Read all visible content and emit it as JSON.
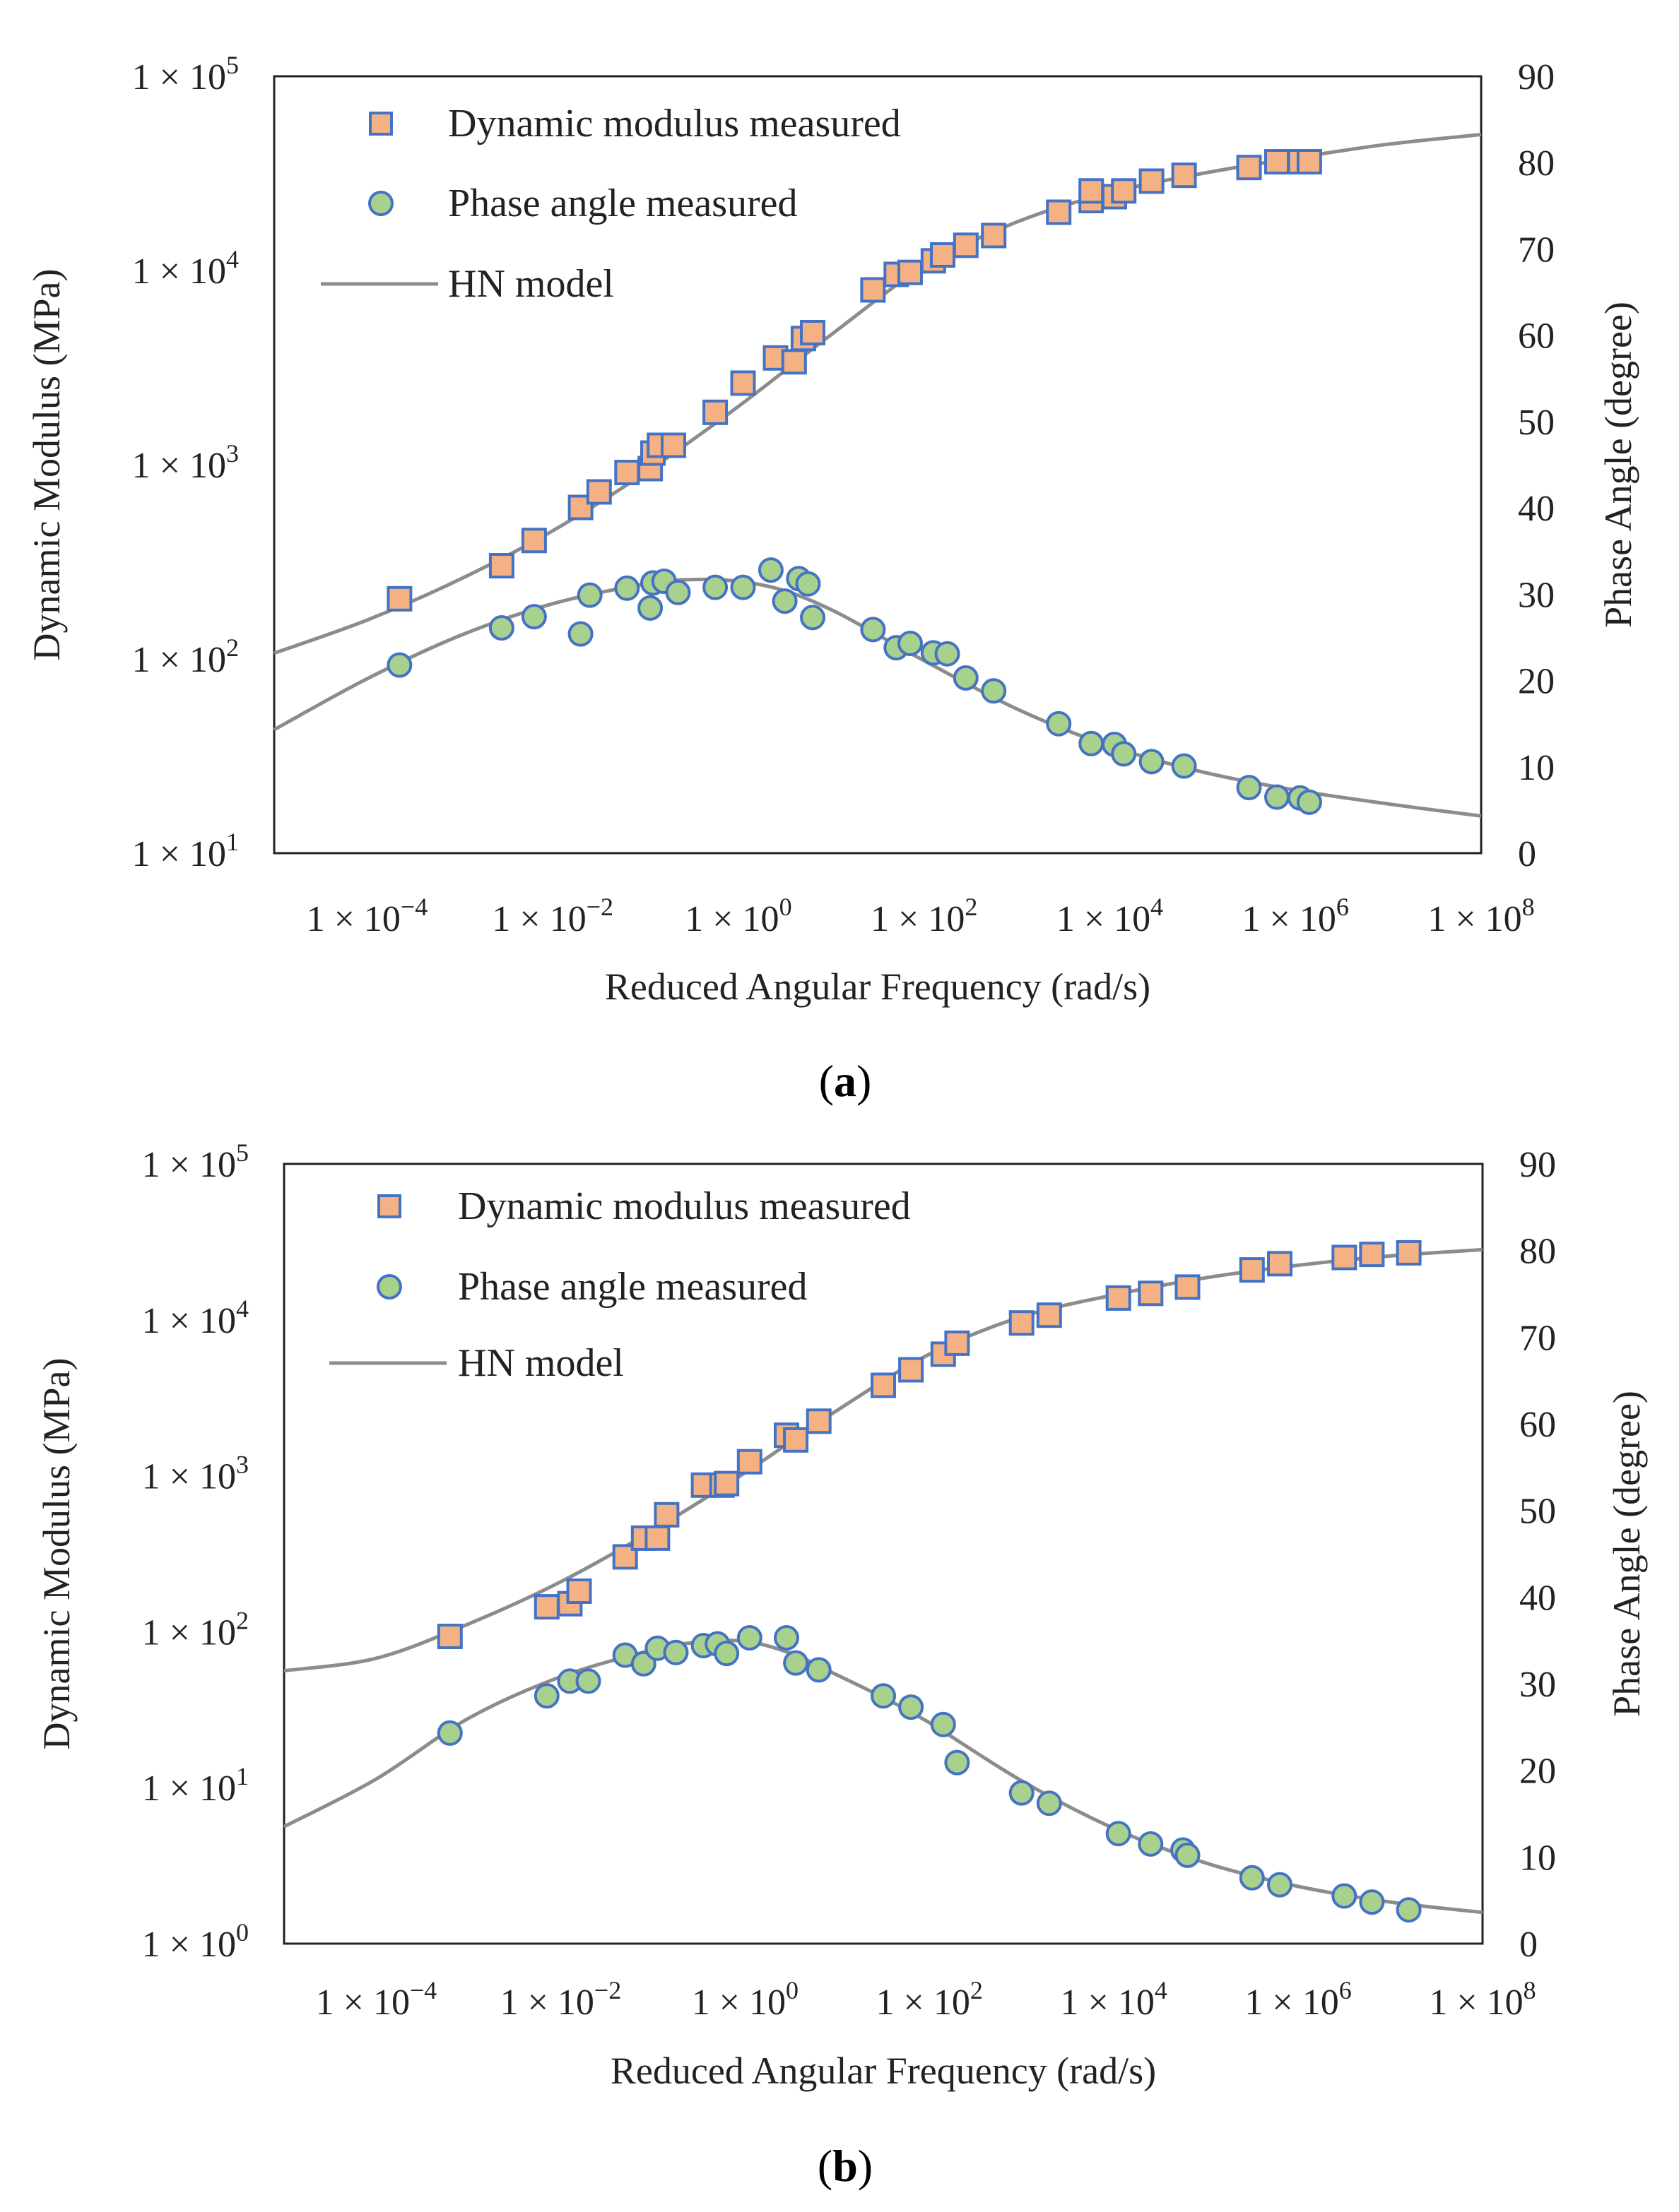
{
  "figure": {
    "caption_a": "a",
    "caption_b": "b"
  },
  "colors": {
    "square_fill": "#f4b183",
    "square_stroke": "#4472c4",
    "circle_fill": "#a9d18e",
    "circle_stroke": "#4472c4",
    "model_line": "#8c8c8c",
    "axis": "#222222"
  },
  "chart_data": [
    {
      "type": "scatter",
      "panel": "a",
      "xlabel": "Reduced Angular Frequency (rad/s)",
      "ylabel_left": "Dynamic Modulus (MPa)",
      "ylabel_right": "Phase Angle (degree)",
      "x_log_range": [
        -5,
        8
      ],
      "y_left_log_range": [
        1,
        5
      ],
      "y_right_range": [
        0,
        90
      ],
      "x_ticks": [
        {
          "base": "1 × 10",
          "exp": "−4",
          "log": -4
        },
        {
          "base": "1 × 10",
          "exp": "−2",
          "log": -2
        },
        {
          "base": "1 × 10",
          "exp": "0",
          "log": 0
        },
        {
          "base": "1 × 10",
          "exp": "2",
          "log": 2
        },
        {
          "base": "1 × 10",
          "exp": "4",
          "log": 4
        },
        {
          "base": "1 × 10",
          "exp": "6",
          "log": 6
        },
        {
          "base": "1 × 10",
          "exp": "8",
          "log": 8
        }
      ],
      "y_left_ticks": [
        {
          "base": "1 × 10",
          "exp": "1",
          "log": 1
        },
        {
          "base": "1 × 10",
          "exp": "2",
          "log": 2
        },
        {
          "base": "1 × 10",
          "exp": "3",
          "log": 3
        },
        {
          "base": "1 × 10",
          "exp": "4",
          "log": 4
        },
        {
          "base": "1 × 10",
          "exp": "5",
          "log": 5
        }
      ],
      "y_right_ticks": [
        "0",
        "10",
        "20",
        "30",
        "40",
        "50",
        "60",
        "70",
        "80",
        "90"
      ],
      "legend": [
        "Dynamic modulus measured",
        "Phase angle measured",
        "HN model"
      ],
      "modulus_points": [
        [
          -3.65,
          2.31
        ],
        [
          -2.55,
          2.48
        ],
        [
          -2.2,
          2.61
        ],
        [
          -1.7,
          2.78
        ],
        [
          -1.5,
          2.86
        ],
        [
          -1.2,
          2.96
        ],
        [
          -0.95,
          2.98
        ],
        [
          -0.92,
          3.06
        ],
        [
          -0.85,
          3.1
        ],
        [
          -0.7,
          3.1
        ],
        [
          -0.25,
          3.27
        ],
        [
          0.05,
          3.42
        ],
        [
          0.4,
          3.55
        ],
        [
          0.6,
          3.53
        ],
        [
          0.7,
          3.65
        ],
        [
          0.8,
          3.68
        ],
        [
          1.45,
          3.9
        ],
        [
          1.7,
          3.98
        ],
        [
          1.85,
          3.99
        ],
        [
          2.1,
          4.05
        ],
        [
          2.2,
          4.08
        ],
        [
          2.45,
          4.13
        ],
        [
          2.75,
          4.18
        ],
        [
          3.45,
          4.3
        ],
        [
          3.8,
          4.36
        ],
        [
          3.8,
          4.41
        ],
        [
          4.05,
          4.38
        ],
        [
          4.15,
          4.41
        ],
        [
          4.45,
          4.46
        ],
        [
          4.8,
          4.49
        ],
        [
          5.5,
          4.53
        ],
        [
          5.8,
          4.56
        ],
        [
          6.05,
          4.56
        ],
        [
          6.15,
          4.56
        ]
      ],
      "phase_points": [
        [
          -3.65,
          21.8
        ],
        [
          -2.55,
          26.1
        ],
        [
          -2.2,
          27.4
        ],
        [
          -1.7,
          25.4
        ],
        [
          -1.6,
          29.9
        ],
        [
          -1.2,
          30.7
        ],
        [
          -0.95,
          28.4
        ],
        [
          -0.92,
          31.3
        ],
        [
          -0.8,
          31.5
        ],
        [
          -0.65,
          30.2
        ],
        [
          -0.25,
          30.8
        ],
        [
          0.05,
          30.8
        ],
        [
          0.35,
          32.8
        ],
        [
          0.5,
          29.2
        ],
        [
          0.65,
          31.8
        ],
        [
          0.75,
          31.2
        ],
        [
          0.8,
          27.3
        ],
        [
          1.45,
          25.9
        ],
        [
          1.7,
          23.8
        ],
        [
          1.85,
          24.3
        ],
        [
          2.1,
          23.2
        ],
        [
          2.25,
          23.1
        ],
        [
          2.45,
          20.3
        ],
        [
          2.75,
          18.8
        ],
        [
          3.45,
          15.0
        ],
        [
          3.8,
          12.7
        ],
        [
          4.05,
          12.6
        ],
        [
          4.15,
          11.5
        ],
        [
          4.45,
          10.6
        ],
        [
          4.8,
          10.1
        ],
        [
          5.5,
          7.6
        ],
        [
          5.8,
          6.5
        ],
        [
          6.05,
          6.4
        ],
        [
          6.15,
          5.9
        ]
      ],
      "model_modulus_curve": [
        [
          -5,
          2.03
        ],
        [
          -4,
          2.2
        ],
        [
          -3,
          2.41
        ],
        [
          -2,
          2.66
        ],
        [
          -1,
          2.96
        ],
        [
          0,
          3.3
        ],
        [
          1,
          3.67
        ],
        [
          2,
          4.02
        ],
        [
          3,
          4.25
        ],
        [
          4,
          4.4
        ],
        [
          5,
          4.5
        ],
        [
          6,
          4.58
        ],
        [
          7,
          4.65
        ],
        [
          8,
          4.7
        ]
      ],
      "model_phase_curve": [
        [
          -5,
          14.3
        ],
        [
          -4,
          20.2
        ],
        [
          -3,
          25.2
        ],
        [
          -2,
          28.9
        ],
        [
          -1,
          31.2
        ],
        [
          -0.5,
          31.7
        ],
        [
          0,
          31.5
        ],
        [
          0.5,
          30.4
        ],
        [
          1,
          28.2
        ],
        [
          1.5,
          25.3
        ],
        [
          2,
          22.3
        ],
        [
          3,
          16.7
        ],
        [
          4,
          12.4
        ],
        [
          5,
          9.4
        ],
        [
          6,
          7.3
        ],
        [
          7,
          5.7
        ],
        [
          8,
          4.3
        ]
      ]
    },
    {
      "type": "scatter",
      "panel": "b",
      "xlabel": "Reduced Angular Frequency (rad/s)",
      "ylabel_left": "Dynamic Modulus (MPa)",
      "ylabel_right": "Phase Angle (degree)",
      "x_log_range": [
        -5,
        8
      ],
      "y_left_log_range": [
        0,
        5
      ],
      "y_right_range": [
        0,
        90
      ],
      "x_ticks": [
        {
          "base": "1 × 10",
          "exp": "−4",
          "log": -4
        },
        {
          "base": "1 × 10",
          "exp": "−2",
          "log": -2
        },
        {
          "base": "1 × 10",
          "exp": "0",
          "log": 0
        },
        {
          "base": "1 × 10",
          "exp": "2",
          "log": 2
        },
        {
          "base": "1 × 10",
          "exp": "4",
          "log": 4
        },
        {
          "base": "1 × 10",
          "exp": "6",
          "log": 6
        },
        {
          "base": "1 × 10",
          "exp": "8",
          "log": 8
        }
      ],
      "y_left_ticks": [
        {
          "base": "1 × 10",
          "exp": "0",
          "log": 0
        },
        {
          "base": "1 × 10",
          "exp": "1",
          "log": 1
        },
        {
          "base": "1 × 10",
          "exp": "2",
          "log": 2
        },
        {
          "base": "1 × 10",
          "exp": "3",
          "log": 3
        },
        {
          "base": "1 × 10",
          "exp": "4",
          "log": 4
        },
        {
          "base": "1 × 10",
          "exp": "5",
          "log": 5
        }
      ],
      "y_right_ticks": [
        "0",
        "10",
        "20",
        "30",
        "40",
        "50",
        "60",
        "70",
        "80",
        "90"
      ],
      "legend": [
        "Dynamic modulus measured",
        "Phase angle measured",
        "HN model"
      ],
      "modulus_points": [
        [
          -3.2,
          1.97
        ],
        [
          -2.15,
          2.16
        ],
        [
          -1.9,
          2.18
        ],
        [
          -1.8,
          2.26
        ],
        [
          -1.3,
          2.48
        ],
        [
          -1.1,
          2.6
        ],
        [
          -0.95,
          2.6
        ],
        [
          -0.85,
          2.75
        ],
        [
          -0.45,
          2.94
        ],
        [
          -0.25,
          2.94
        ],
        [
          -0.2,
          2.95
        ],
        [
          0.05,
          3.09
        ],
        [
          0.45,
          3.26
        ],
        [
          0.55,
          3.23
        ],
        [
          0.8,
          3.35
        ],
        [
          1.5,
          3.58
        ],
        [
          1.8,
          3.68
        ],
        [
          2.15,
          3.78
        ],
        [
          2.3,
          3.85
        ],
        [
          3.0,
          3.98
        ],
        [
          3.3,
          4.03
        ],
        [
          4.05,
          4.14
        ],
        [
          4.4,
          4.17
        ],
        [
          4.8,
          4.21
        ],
        [
          5.5,
          4.32
        ],
        [
          5.8,
          4.36
        ],
        [
          6.5,
          4.4
        ],
        [
          6.8,
          4.42
        ],
        [
          7.2,
          4.43
        ]
      ],
      "phase_points": [
        [
          -3.2,
          24.3
        ],
        [
          -2.15,
          28.6
        ],
        [
          -1.9,
          30.3
        ],
        [
          -1.7,
          30.3
        ],
        [
          -1.3,
          33.3
        ],
        [
          -1.1,
          32.3
        ],
        [
          -0.95,
          34.1
        ],
        [
          -0.75,
          33.6
        ],
        [
          -0.45,
          34.4
        ],
        [
          -0.3,
          34.6
        ],
        [
          -0.2,
          33.5
        ],
        [
          0.05,
          35.3
        ],
        [
          0.45,
          35.3
        ],
        [
          0.55,
          32.4
        ],
        [
          0.8,
          31.6
        ],
        [
          1.5,
          28.6
        ],
        [
          1.8,
          27.3
        ],
        [
          2.15,
          25.3
        ],
        [
          2.3,
          20.9
        ],
        [
          3.0,
          17.4
        ],
        [
          3.3,
          16.2
        ],
        [
          4.05,
          12.7
        ],
        [
          4.4,
          11.5
        ],
        [
          4.75,
          10.8
        ],
        [
          4.8,
          10.2
        ],
        [
          5.5,
          7.6
        ],
        [
          5.8,
          6.8
        ],
        [
          6.5,
          5.5
        ],
        [
          6.8,
          4.8
        ],
        [
          7.2,
          3.9
        ]
      ],
      "model_modulus_curve": [
        [
          -5,
          1.75
        ],
        [
          -4,
          1.83
        ],
        [
          -3,
          2.05
        ],
        [
          -2,
          2.32
        ],
        [
          -1,
          2.65
        ],
        [
          0,
          3.02
        ],
        [
          1,
          3.42
        ],
        [
          2,
          3.78
        ],
        [
          3,
          4.02
        ],
        [
          4,
          4.16
        ],
        [
          5,
          4.27
        ],
        [
          6,
          4.35
        ],
        [
          7,
          4.41
        ],
        [
          8,
          4.45
        ]
      ],
      "model_phase_curve": [
        [
          -5,
          13.5
        ],
        [
          -4,
          19.0
        ],
        [
          -3,
          26.0
        ],
        [
          -2,
          30.8
        ],
        [
          -1,
          33.9
        ],
        [
          -0.5,
          34.8
        ],
        [
          0,
          34.9
        ],
        [
          0.5,
          33.5
        ],
        [
          1,
          31.0
        ],
        [
          1.5,
          28.4
        ],
        [
          2,
          25.5
        ],
        [
          3,
          18.8
        ],
        [
          4,
          13.3
        ],
        [
          5,
          9.3
        ],
        [
          6,
          6.6
        ],
        [
          7,
          4.8
        ],
        [
          8,
          3.6
        ]
      ]
    }
  ]
}
